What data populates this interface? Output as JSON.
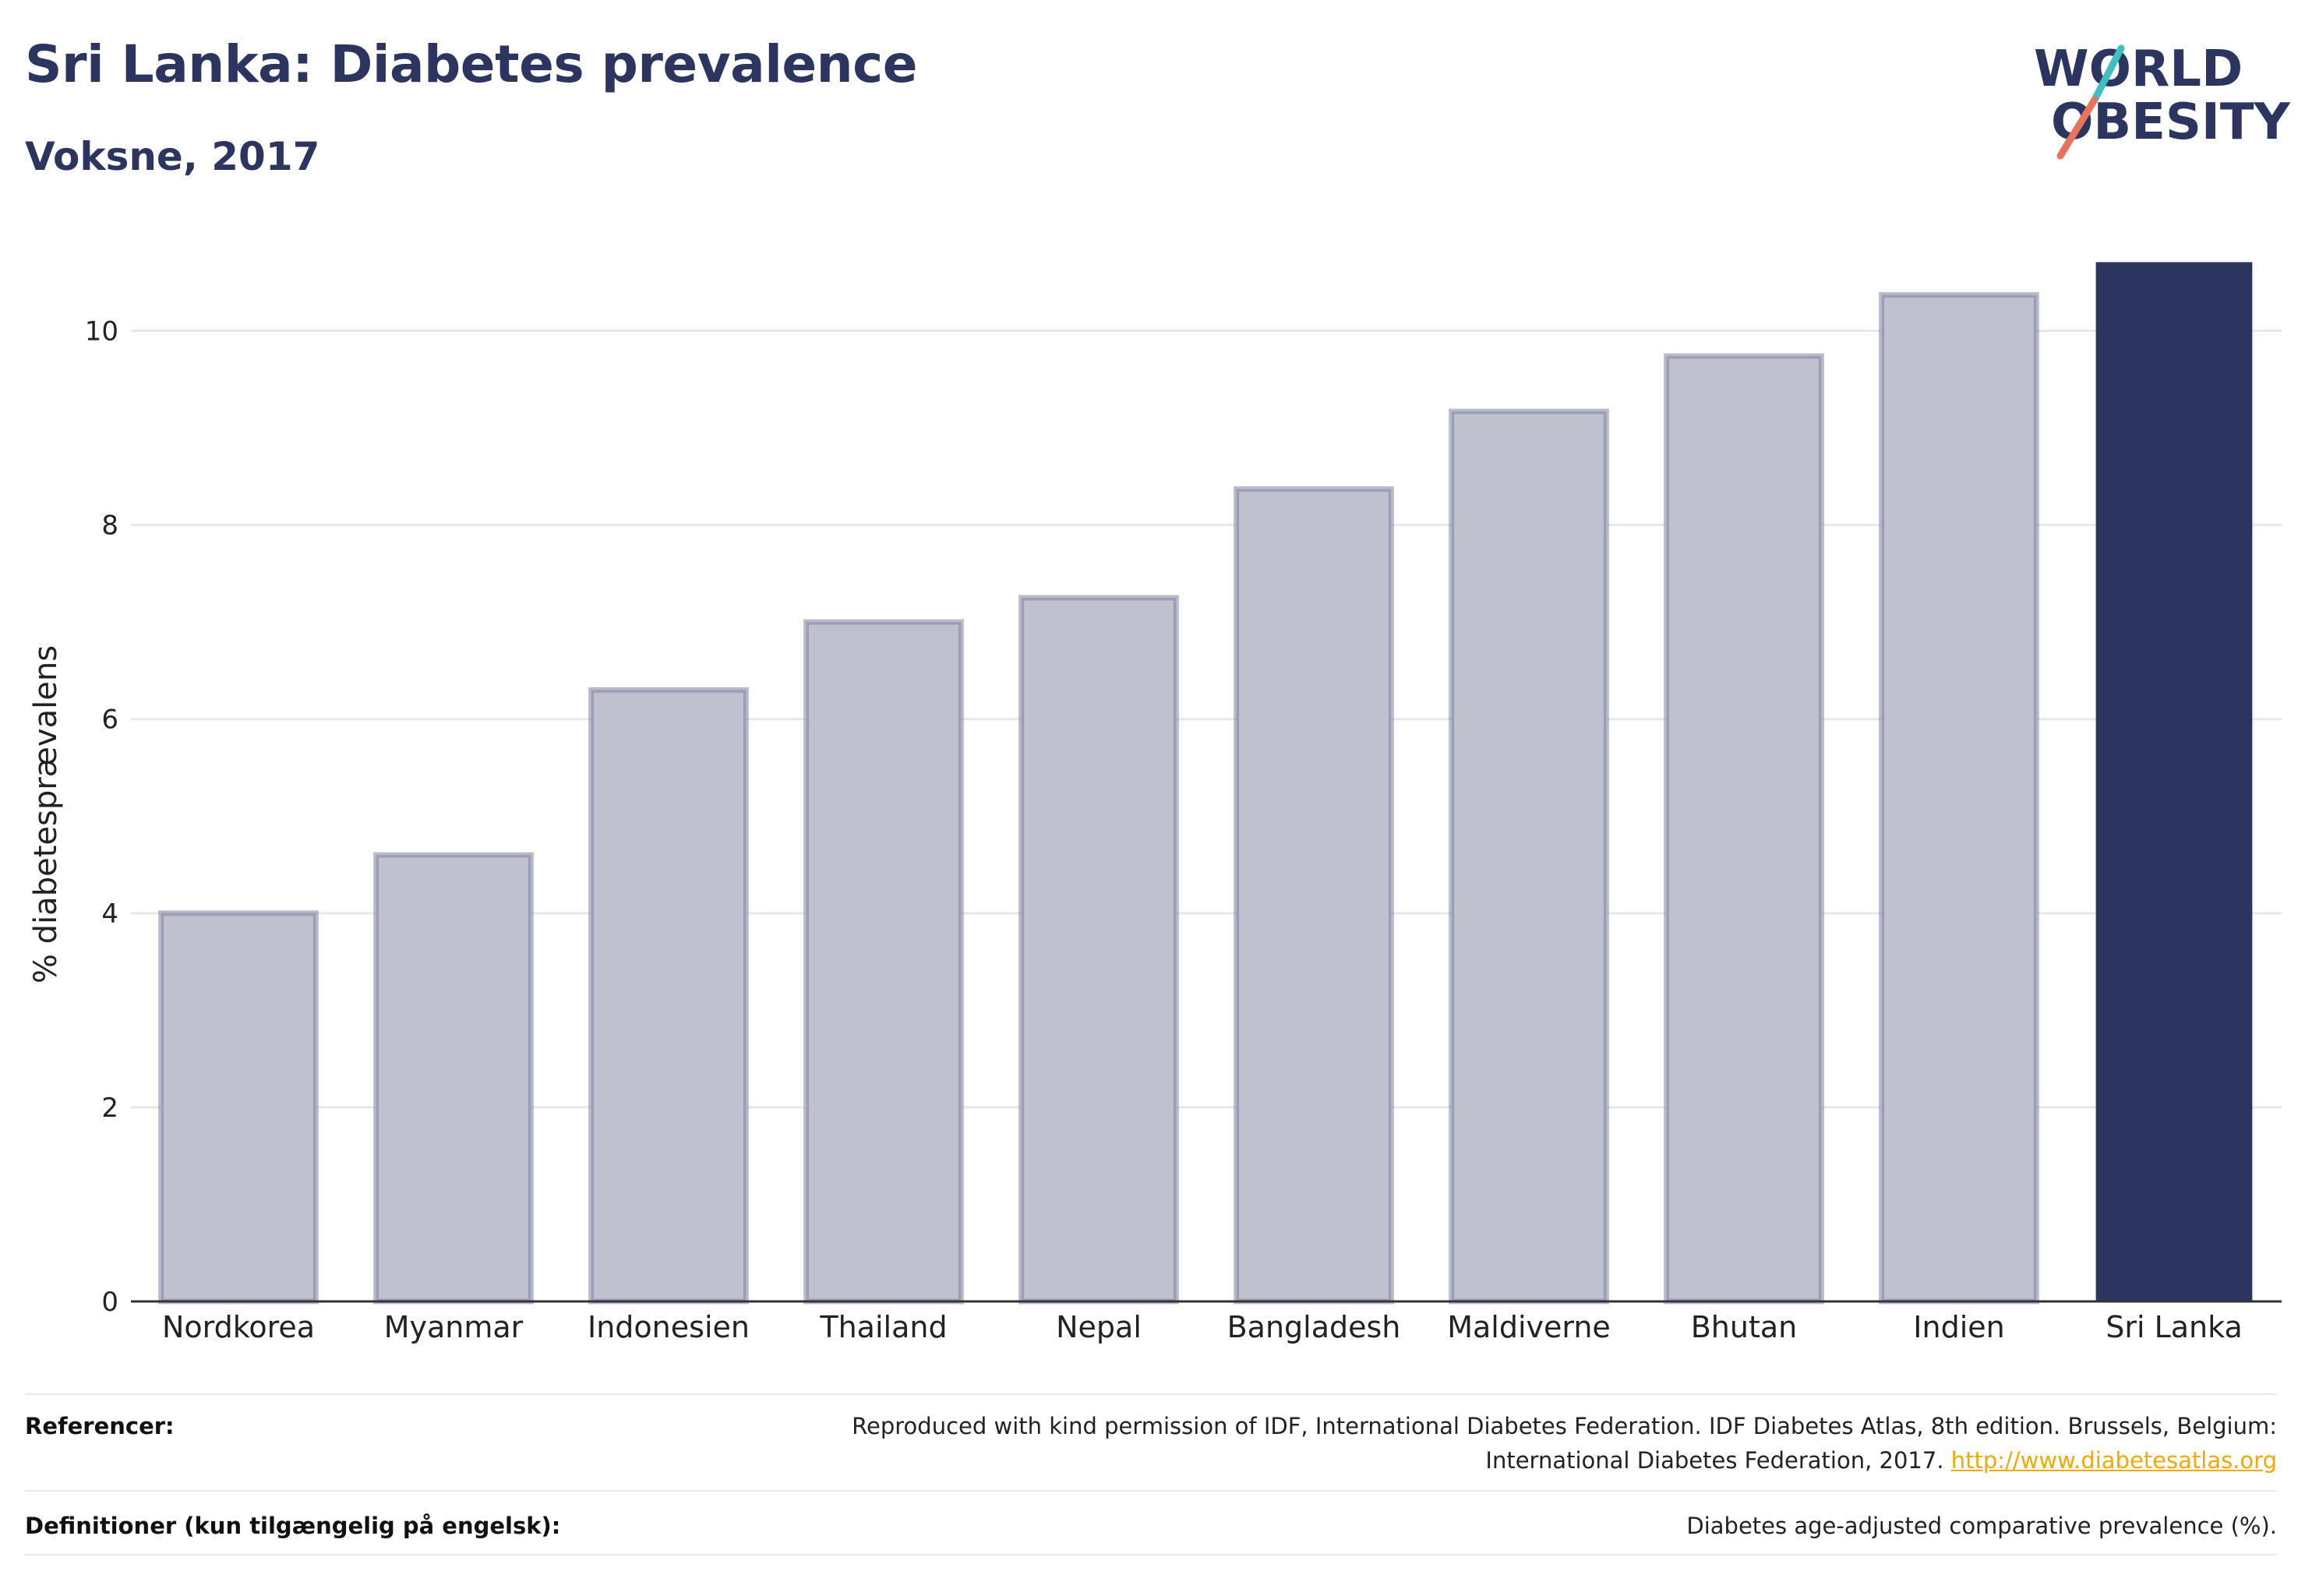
{
  "header": {
    "title": "Sri Lanka: Diabetes prevalence",
    "subtitle": "Voksne, 2017"
  },
  "logo": {
    "line1": "WORLD",
    "line2": "OBESITY",
    "accent_teal": "#3fbfbf",
    "accent_coral": "#e8735a"
  },
  "chart_data": {
    "type": "bar",
    "categories": [
      "Nordkorea",
      "Myanmar",
      "Indonesien",
      "Thailand",
      "Nepal",
      "Bangladesh",
      "Maldiverne",
      "Bhutan",
      "Indien",
      "Sri Lanka"
    ],
    "values": [
      4.0,
      4.6,
      6.3,
      7.0,
      7.25,
      8.37,
      9.17,
      9.74,
      10.37,
      10.7
    ],
    "highlight": "Sri Lanka",
    "ylabel": "% diabetesprævalens",
    "xlabel": "",
    "ylim": [
      0,
      11
    ],
    "yticks": [
      0,
      2,
      4,
      6,
      8,
      10
    ],
    "grid": true,
    "colors": {
      "bar": "#bfc2ce",
      "bar_stroke": "#7d84a3",
      "highlight": "#2b3560",
      "grid": "#e6e8ef",
      "axis": "#333333"
    }
  },
  "footer": {
    "references_label": "Referencer:",
    "references_text_1": "Reproduced with kind permission of IDF, International Diabetes Federation. IDF Diabetes Atlas, 8th edition. Brussels, Belgium:",
    "references_text_2": "International Diabetes Federation, 2017.",
    "references_link": "http://www.diabetesatlas.org",
    "definitions_label": "Definitioner (kun tilgængelig på engelsk):",
    "definitions_text": "Diabetes age-adjusted comparative prevalence (%)."
  }
}
